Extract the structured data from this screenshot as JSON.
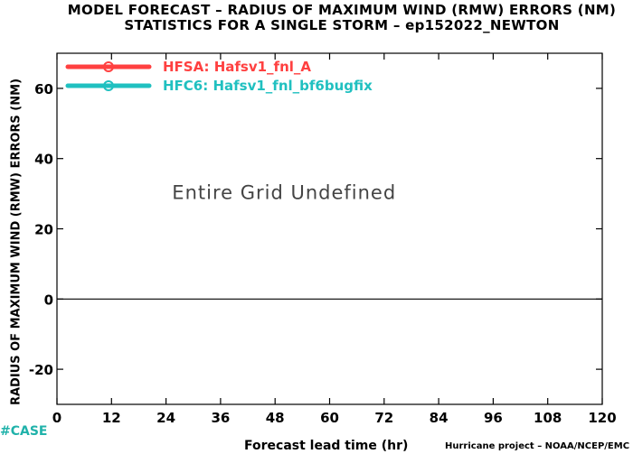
{
  "titles": {
    "line1": "MODEL FORECAST – RADIUS OF MAXIMUM WIND (RMW) ERRORS (NM)",
    "line2": "STATISTICS FOR A SINGLE STORM – ep152022_NEWTON"
  },
  "chart_data": {
    "type": "line",
    "xlabel": "Forecast lead time (hr)",
    "ylabel": "RADIUS OF MAXIMUM WIND (RMW) ERRORS (NM)",
    "xlim": [
      0,
      120
    ],
    "ylim": [
      -30,
      70
    ],
    "xticks": [
      0,
      12,
      24,
      36,
      48,
      60,
      72,
      84,
      96,
      108,
      120
    ],
    "yticks": [
      -20,
      0,
      20,
      40,
      60
    ],
    "x_tick_labels": [
      "0",
      "12",
      "24",
      "36",
      "48",
      "60",
      "72",
      "84",
      "96",
      "108",
      "120"
    ],
    "y_tick_labels": [
      "-20",
      "0",
      "20",
      "40",
      "60"
    ],
    "zero_line": 0,
    "annotation": "Entire Grid Undefined",
    "legend_position": "top-left",
    "series": [
      {
        "name": "HFSA: Hafsv1_fnl_A",
        "color": "#ff4040",
        "values": []
      },
      {
        "name": "HFC6: Hafsv1_fnl_bf6bugfix",
        "color": "#20c0c0",
        "values": []
      }
    ]
  },
  "footer": {
    "left": "#CASE",
    "right": "Hurricane project – NOAA/NCEP/EMC"
  }
}
